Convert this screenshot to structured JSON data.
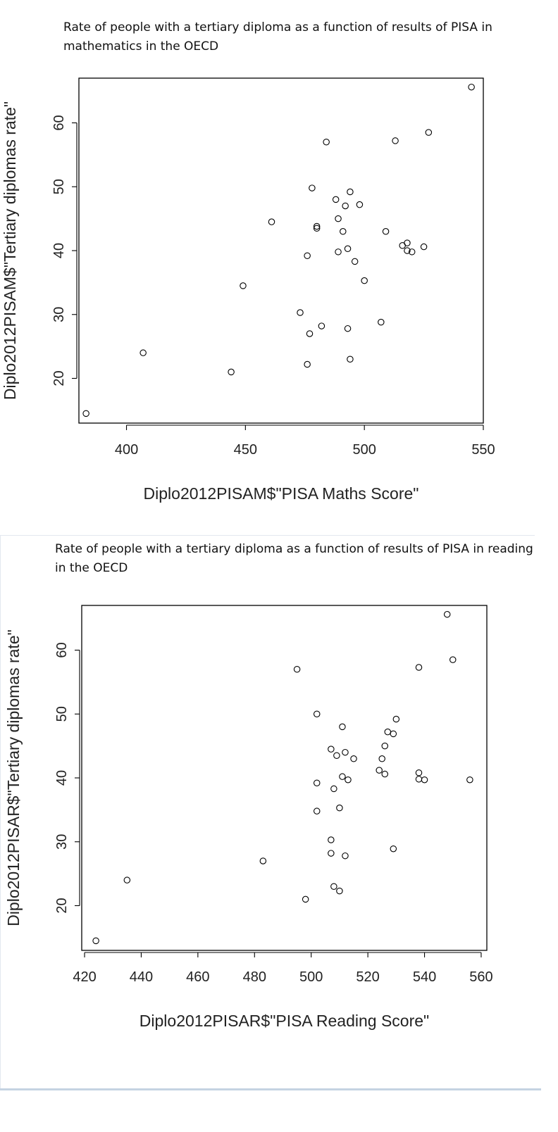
{
  "chart_data": [
    {
      "type": "scatter",
      "title": "Rate of people with a tertiary diploma as a function of results of PISA in mathematics in the OECD",
      "xlabel": "Diplo2012PISAM$\"PISA Maths Score\"",
      "ylabel": "Diplo2012PISAM$\"Tertiary diplomas rate\"",
      "xlim": [
        380,
        550
      ],
      "ylim": [
        13,
        67
      ],
      "x_ticks": [
        400,
        450,
        500,
        550
      ],
      "y_ticks": [
        20,
        30,
        40,
        50,
        60
      ],
      "x_tick_labels": [
        "400",
        "450",
        "500",
        "550"
      ],
      "y_tick_labels": [
        "20",
        "30",
        "40",
        "50",
        "60"
      ],
      "grid": false,
      "x": [
        383,
        407,
        444,
        449,
        461,
        473,
        476,
        476,
        477,
        478,
        480,
        480,
        482,
        484,
        488,
        489,
        489,
        491,
        492,
        493,
        493,
        494,
        494,
        496,
        498,
        500,
        507,
        509,
        513,
        516,
        518,
        518,
        520,
        525,
        527,
        545
      ],
      "y": [
        14.5,
        24,
        21,
        34.5,
        44.5,
        30.3,
        22.2,
        39.2,
        27,
        49.8,
        43.8,
        43.5,
        28.2,
        57,
        48,
        45,
        39.8,
        43,
        47,
        40.3,
        27.8,
        49.2,
        23,
        38.3,
        47.2,
        35.3,
        28.8,
        43,
        57.2,
        40.8,
        41.2,
        40,
        39.8,
        40.6,
        58.5,
        65.6
      ]
    },
    {
      "type": "scatter",
      "title": "Rate of people with a tertiary diploma as a function of results of PISA in reading in the OECD",
      "xlabel": "Diplo2012PISAR$\"PISA Reading Score\"",
      "ylabel": "Diplo2012PISAR$\"Tertiary diplomas rate\"",
      "xlim": [
        419,
        562
      ],
      "ylim": [
        13,
        67
      ],
      "x_ticks": [
        420,
        440,
        460,
        480,
        500,
        520,
        540,
        560
      ],
      "y_ticks": [
        20,
        30,
        40,
        50,
        60
      ],
      "x_tick_labels": [
        "420",
        "440",
        "460",
        "480",
        "500",
        "520",
        "540",
        "560"
      ],
      "y_tick_labels": [
        "20",
        "30",
        "40",
        "50",
        "60"
      ],
      "grid": false,
      "x": [
        424,
        435,
        483,
        495,
        498,
        502,
        502,
        502,
        507,
        507,
        507,
        508,
        508,
        509,
        510,
        510,
        511,
        511,
        512,
        512,
        513,
        515,
        524,
        525,
        526,
        526,
        527,
        529,
        529,
        530,
        538,
        538,
        538,
        540,
        548,
        550,
        556
      ],
      "y": [
        14.5,
        24,
        27,
        57,
        21,
        39.2,
        34.8,
        50,
        44.5,
        30.3,
        28.2,
        38.3,
        23,
        43.5,
        22.3,
        35.3,
        48,
        40.2,
        27.8,
        44,
        39.7,
        43,
        41.2,
        43,
        40.6,
        45,
        47.2,
        46.9,
        28.9,
        49.2,
        39.8,
        40.8,
        57.3,
        39.7,
        65.6,
        58.5,
        39.7
      ]
    }
  ]
}
